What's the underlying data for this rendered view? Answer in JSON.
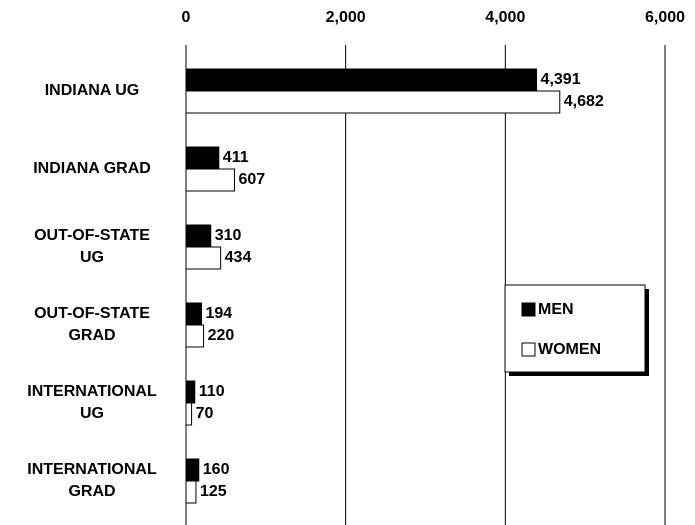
{
  "chart_data": {
    "type": "bar",
    "orientation": "horizontal",
    "categories": [
      "INDIANA UG",
      "INDIANA GRAD",
      "OUT-OF-STATE UG",
      "OUT-OF-STATE GRAD",
      "INTERNATIONAL UG",
      "INTERNATIONAL GRAD"
    ],
    "series": [
      {
        "name": "MEN",
        "color": "#000000",
        "values": [
          4391,
          411,
          310,
          194,
          110,
          160
        ],
        "value_labels": [
          "4,391",
          "411",
          "310",
          "194",
          "110",
          "160"
        ]
      },
      {
        "name": "WOMEN",
        "color": "#ffffff",
        "values": [
          4682,
          607,
          434,
          220,
          70,
          125
        ],
        "value_labels": [
          "4,682",
          "607",
          "434",
          "220",
          "70",
          "125"
        ]
      }
    ],
    "xlim": [
      0,
      6000
    ],
    "xticks": [
      0,
      {
        "value": 2000,
        "label": "2,000"
      },
      {
        "value": 4000,
        "label": "4,000"
      },
      {
        "value": 6000,
        "label": "6,000"
      }
    ],
    "grid": true,
    "legend": "right"
  }
}
